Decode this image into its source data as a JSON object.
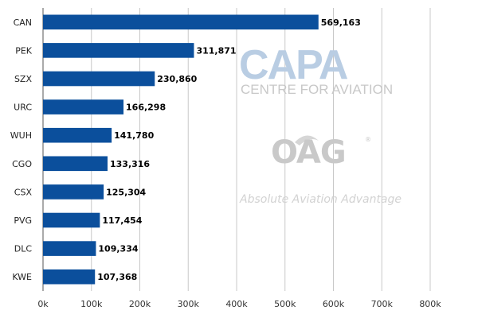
{
  "chart_data": {
    "type": "bar",
    "orientation": "horizontal",
    "categories": [
      "CAN",
      "PEK",
      "SZX",
      "URC",
      "WUH",
      "CGO",
      "CSX",
      "PVG",
      "DLC",
      "KWE"
    ],
    "values": [
      569163,
      311871,
      230860,
      166298,
      141780,
      133316,
      125304,
      117454,
      109334,
      107368
    ],
    "value_labels": [
      "569,163",
      "311,871",
      "230,860",
      "166,298",
      "141,780",
      "133,316",
      "125,304",
      "117,454",
      "109,334",
      "107,368"
    ],
    "title": "",
    "xlabel": "",
    "ylabel": "",
    "xlim": [
      0,
      800000
    ],
    "x_ticks": [
      0,
      100000,
      200000,
      300000,
      400000,
      500000,
      600000,
      700000,
      800000
    ],
    "x_tick_labels": [
      "0k",
      "100k",
      "200k",
      "300k",
      "400k",
      "500k",
      "600k",
      "700k",
      "800k"
    ],
    "grid": true,
    "bar_color": "#0b4f9c",
    "grid_color": "#c8c8c8"
  },
  "watermark": {
    "capa_main": "CAPA",
    "capa_sub": "CENTRE FOR AVIATION",
    "oag": "OAG",
    "oag_reg": "®",
    "tagline": "Absolute Aviation Advantage",
    "capa_color": "#b9cde3",
    "oag_color": "#c9c9c9"
  }
}
